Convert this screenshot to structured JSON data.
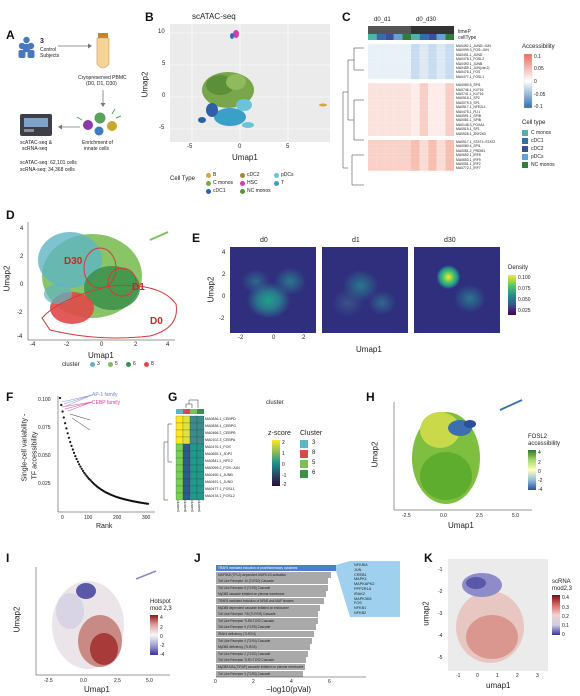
{
  "panel_labels": [
    "A",
    "B",
    "C",
    "D",
    "E",
    "F",
    "G",
    "H",
    "I",
    "J",
    "K"
  ],
  "panelA": {
    "subjects_num": "3",
    "subjects_l1": "Control",
    "subjects_l2": "Subjects",
    "pbmc_l1": "Cryopreserved PBMC",
    "pbmc_l2": "(D0, D1, D30)",
    "enrich_l1": "Enrichment of",
    "enrich_l2": "innate cells",
    "seq_l1": "scATAC-seq &",
    "seq_l2": "scRNA-seq",
    "atac_count": "scATAC-seq: 62,101 cells",
    "rna_count": "scRNA-seq: 34,368 cells"
  },
  "panelB": {
    "title": "scATAC-seq",
    "xlabel": "Umap1",
    "ylabel": "Umap2",
    "xticks": [
      "-5",
      "0",
      "5"
    ],
    "yticks": [
      "10",
      "5",
      "0",
      "-5"
    ],
    "legend_title": "Cell Type",
    "legend": [
      {
        "label": "B",
        "color": "#d9a441"
      },
      {
        "label": "C monos",
        "color": "#7aa64b"
      },
      {
        "label": "cDC1",
        "color": "#2f5fa8"
      },
      {
        "label": "cDC2",
        "color": "#9c8a3a"
      },
      {
        "label": "HSC",
        "color": "#d63ca9"
      },
      {
        "label": "NC monos",
        "color": "#5b8f3a"
      },
      {
        "label": "pDCs",
        "color": "#6bc3d8"
      },
      {
        "label": "T",
        "color": "#3aa0c8"
      }
    ]
  },
  "panelC": {
    "col_groups": [
      "d0_d1",
      "d0_d30"
    ],
    "annot1": "timeP",
    "annot2": "cellType",
    "motifs_top": [
      "MA0492.1_JUND::JUN",
      "MA0099.3_FOS::JUN",
      "MA0491.1_JUND",
      "MA0478.1_FOSL2",
      "MA0490.1_JUNB",
      "MA0489.1_JUN(var.2)",
      "MA0476.1_FOS",
      "MA0477.1_FOSL1"
    ],
    "motifs_mid": [
      "MA0080.5_SPI1",
      "MA0746.1_KLF16",
      "MA0741.1_KLF16",
      "MA0516.1_SP2",
      "MA0079.3_SP1",
      "MA0517.1_NFE2L1",
      "MA0475.1_FLI1",
      "MA0591.1_SPIB",
      "MA0081.1_SPIB",
      "MA0148.3_FOXA1",
      "MA0515.1_SP1",
      "MA0528.1_ZNF263"
    ],
    "motifs_bot": [
      "MA0517.1_STAT1::STAT2",
      "MA0080.4_SPI1",
      "MA0081.2_PRDM1",
      "MA0652.1_IRF8",
      "MA0653.1_IRF9",
      "MA0051.1_IRF2",
      "MA0772.1_IRF7"
    ],
    "acc_title": "Accessibility",
    "acc_ticks": [
      "0.1",
      "0.05",
      "0",
      "-0.05",
      "-0.1"
    ],
    "ct_title": "Cell type",
    "ct_legend": [
      {
        "label": "C monos",
        "color": "#4fb3a9"
      },
      {
        "label": "cDC1",
        "color": "#2f6fb0"
      },
      {
        "label": "cDC2",
        "color": "#3b4f9f"
      },
      {
        "label": "pDCs",
        "color": "#5ea4d4"
      },
      {
        "label": "NC monos",
        "color": "#2e7d3a"
      }
    ],
    "time_colors": [
      "#555555",
      "#333333"
    ]
  },
  "panelD": {
    "xlabel": "Umap1",
    "ylabel": "Umap2",
    "xticks": [
      "-4",
      "-2",
      "0",
      "2",
      "4"
    ],
    "yticks": [
      "4",
      "2",
      "0",
      "-2",
      "-4"
    ],
    "region_labels": [
      "D30",
      "D1",
      "D0"
    ],
    "legend_title": "cluster",
    "legend": [
      {
        "label": "3",
        "color": "#5fb4c4"
      },
      {
        "label": "5",
        "color": "#7cbf56"
      },
      {
        "label": "6",
        "color": "#3b8f4a"
      },
      {
        "label": "8",
        "color": "#e04848"
      }
    ]
  },
  "panelE": {
    "facets": [
      "d0",
      "d1",
      "d30"
    ],
    "xlabel": "Umap1",
    "ylabel": "Umap2",
    "xticks": [
      "-2",
      "0",
      "2"
    ],
    "yticks": [
      "4",
      "2",
      "0",
      "-2"
    ],
    "legend_title": "Density",
    "legend_ticks": [
      "0.100",
      "0.075",
      "0.050",
      "0.025"
    ]
  },
  "panelF": {
    "ylabel_l1": "Single-cell variability -",
    "ylabel_l2": "TF accessibility",
    "xlabel": "Rank",
    "xticks": [
      "0",
      "100",
      "200",
      "300"
    ],
    "yticks": [
      "0.100",
      "0.075",
      "0.050",
      "0.025"
    ],
    "ap1_label": "AP-1 family",
    "cebp_label": "CEBP family",
    "ap1_color": "#7b89d6",
    "cebp_color": "#e0409b"
  },
  "panelG": {
    "legend_cluster_title": "cluster",
    "motifs": [
      "MA0836.1_CEBPD",
      "MA0838.1_CEBPG",
      "MA0466.2_CEBPB",
      "MA0102.3_CEBPA",
      "MA0476.1_FOS",
      "MA0655.1_JDP2",
      "MA0841.1_NFE2",
      "MA0099.2_FOS::JUN",
      "MA0490.1_JUNB",
      "MA0491.1_JUND",
      "MA0477.1_FOSL1",
      "MA0478.1_FOSL2"
    ],
    "col_labels": [
      "cluster3",
      "cluster8",
      "cluster5",
      "cluster6"
    ],
    "z_title": "z-score",
    "z_ticks": [
      "2",
      "1",
      "0",
      "-1",
      "-2"
    ],
    "clusters": [
      {
        "label": "3",
        "color": "#5fb4c4"
      },
      {
        "label": "8",
        "color": "#e04848"
      },
      {
        "label": "5",
        "color": "#7cbf56"
      },
      {
        "label": "6",
        "color": "#3b8f4a"
      }
    ]
  },
  "panelH": {
    "legend_l1": "FOSL2",
    "legend_l2": "accessibility",
    "legend_ticks": [
      "4",
      "2",
      "0",
      "-2",
      "-4"
    ],
    "xlabel": "Umap1",
    "ylabel": "Umap2",
    "xticks": [
      "-2.5",
      "0.0",
      "2.5",
      "5.0"
    ]
  },
  "panelI": {
    "legend_l1": "Hotspot",
    "legend_l2": "mod 2,3",
    "legend_ticks": [
      "4",
      "2",
      "0",
      "-2",
      "-4"
    ],
    "xlabel": "Umap1",
    "ylabel": "Umap2",
    "xticks": [
      "-2.5",
      "0.0",
      "2.5",
      "5.0"
    ]
  },
  "panelJ": {
    "xlabel": "−log10(pVal)",
    "xticks": [
      "0",
      "2",
      "4",
      "6"
    ],
    "terms": [
      "TRAF6 mediated induction of proinflammatory cytokines",
      "MAP3K8 (TPL2)-dependent MAPK1/3 activation",
      "Toll Like Receptor 10 (TLR10) Cascade",
      "Toll Like Receptor 5 (TLR5) Cascade",
      "MyD88 cascade initiated on plasma membrane",
      "TRAF6 mediated induction of NFkB and MAP kinases",
      "MyD88 dependent cascade initiated on endosome",
      "Toll Like Receptor 7/8 (TLR7/8) Cascade",
      "Toll Like Receptor TLR6:TLR2 Cascade",
      "Toll Like Receptor 9 (TLR9) Cascade",
      "IRAK4 deficiency (TLR2/4)",
      "Toll Like Receptor 4 (TLR4) Cascade",
      "MyD88 deficiency (TLR2/4)",
      "Toll Like Receptor 2 (TLR2) Cascade",
      "Toll Like Receptor TLR1:TLR2 Cascade",
      "MyD88:MAL(TIRAP) cascade initiated on plasma membrane",
      "Toll Like Receptor 3 (TLR3) Cascade"
    ],
    "term_values": [
      6.6,
      6.0,
      5.8,
      5.8,
      5.7,
      5.6,
      5.4,
      5.3,
      5.3,
      5.2,
      5.1,
      5.0,
      4.9,
      4.8,
      4.7,
      4.6,
      4.5
    ],
    "genes": [
      "NFKBIA",
      "JUN",
      "CREB1",
      "MAPK1",
      "MAPKAPK2",
      "PPP2R1A",
      "IRAK2",
      "MAPK3K8",
      "FOS",
      "NFKB1",
      "NFKB2"
    ],
    "highlight_color": "#4a7fc9",
    "bar_color": "#a9a9a9"
  },
  "panelK": {
    "legend_l1": "scRNA",
    "legend_l2": "mod2,3",
    "legend_ticks": [
      "0.4",
      "0.3",
      "0.2",
      "0.1",
      "0"
    ],
    "xlabel": "umap1",
    "ylabel": "umap2",
    "xticks": [
      "-1",
      "0",
      "1",
      "2",
      "3"
    ],
    "yticks": [
      "-1",
      "-2",
      "-3",
      "-4",
      "-5"
    ]
  }
}
